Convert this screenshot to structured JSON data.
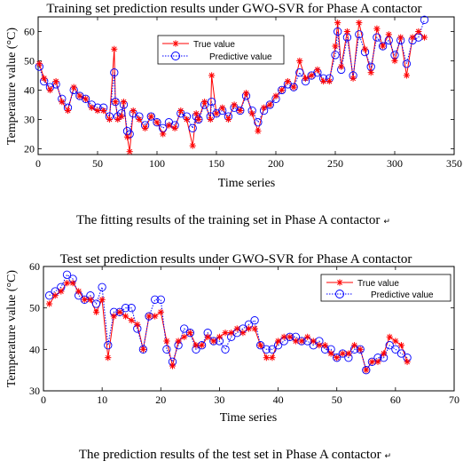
{
  "captions": {
    "top": "The fitting results of the training set in Phase A contactor",
    "bottom": "The prediction results of the test set in Phase A contactor",
    "mark": "↵"
  },
  "colors": {
    "true_value": "#ff0000",
    "predictive_value": "#0000ff"
  },
  "chart_data": [
    {
      "type": "line",
      "title": "Training set prediction results under GWO-SVR for Phase A contactor",
      "xlabel": "Time series",
      "ylabel": "Temperature value (°C)",
      "xlim": [
        0,
        350
      ],
      "ylim": [
        18,
        65
      ],
      "xticks": [
        0,
        50,
        100,
        150,
        200,
        250,
        300,
        350
      ],
      "yticks": [
        20,
        30,
        40,
        50,
        60
      ],
      "legend_position": "top-center",
      "series": [
        {
          "name": "True value",
          "x": [
            1,
            5,
            10,
            15,
            20,
            25,
            30,
            35,
            40,
            45,
            50,
            55,
            60,
            64,
            65,
            67,
            70,
            72,
            75,
            77,
            80,
            85,
            90,
            95,
            100,
            105,
            110,
            115,
            120,
            125,
            130,
            133,
            135,
            140,
            145,
            146,
            150,
            155,
            160,
            165,
            170,
            175,
            180,
            185,
            190,
            195,
            200,
            205,
            210,
            215,
            220,
            225,
            230,
            235,
            240,
            245,
            250,
            252,
            255,
            260,
            265,
            270,
            275,
            280,
            285,
            290,
            295,
            300,
            305,
            310,
            315,
            320,
            325
          ],
          "values": [
            49,
            44,
            40,
            43,
            36,
            33,
            41,
            38,
            37,
            34,
            33,
            33,
            30,
            54,
            36,
            30,
            31,
            36,
            24,
            19,
            33,
            30,
            27,
            31,
            29,
            25,
            28,
            27,
            33,
            30,
            21,
            32,
            30,
            36,
            30,
            45,
            32,
            34,
            30,
            35,
            33,
            39,
            32,
            26,
            34,
            35,
            38,
            40,
            43,
            41,
            50,
            44,
            45,
            47,
            43,
            43,
            55,
            63,
            48,
            60,
            44,
            63,
            54,
            46,
            61,
            55,
            59,
            50,
            58,
            45,
            58,
            60,
            58
          ]
        },
        {
          "name": "Predictive value",
          "x": [
            1,
            5,
            10,
            15,
            20,
            25,
            30,
            35,
            40,
            45,
            50,
            55,
            60,
            64,
            65,
            67,
            70,
            72,
            75,
            77,
            80,
            85,
            90,
            95,
            100,
            105,
            110,
            115,
            120,
            125,
            130,
            133,
            135,
            140,
            145,
            146,
            150,
            155,
            160,
            165,
            170,
            175,
            180,
            185,
            190,
            195,
            200,
            205,
            210,
            215,
            220,
            225,
            230,
            235,
            240,
            245,
            250,
            252,
            255,
            260,
            265,
            270,
            275,
            280,
            285,
            290,
            295,
            300,
            305,
            310,
            315,
            320,
            325
          ],
          "values": [
            48,
            43,
            41,
            42,
            37,
            34,
            40,
            38,
            37,
            35,
            34,
            34,
            31,
            46,
            36,
            31,
            32,
            35,
            26,
            25,
            32,
            31,
            28,
            31,
            29,
            27,
            29,
            28,
            32,
            31,
            27,
            31,
            30,
            35,
            31,
            36,
            32,
            33,
            31,
            34,
            33,
            38,
            33,
            29,
            33,
            35,
            37,
            40,
            42,
            41,
            46,
            43,
            45,
            46,
            44,
            44,
            52,
            60,
            47,
            58,
            45,
            59,
            53,
            48,
            58,
            55,
            57,
            52,
            57,
            49,
            57,
            58,
            64
          ]
        }
      ]
    },
    {
      "type": "line",
      "title": "Test set prediction results under GWO-SVR for Phase A contactor",
      "xlabel": "Time series",
      "ylabel": "Temperature value (°C)",
      "xlim": [
        0,
        70
      ],
      "ylim": [
        30,
        60
      ],
      "xticks": [
        0,
        10,
        20,
        30,
        40,
        50,
        60,
        70
      ],
      "yticks": [
        30,
        40,
        50,
        60
      ],
      "legend_position": "top-right",
      "series": [
        {
          "name": "True value",
          "x": [
            1,
            2,
            3,
            4,
            5,
            6,
            7,
            8,
            9,
            10,
            11,
            12,
            13,
            14,
            15,
            16,
            17,
            18,
            19,
            20,
            21,
            22,
            23,
            24,
            25,
            26,
            27,
            28,
            29,
            30,
            31,
            32,
            33,
            34,
            35,
            36,
            37,
            38,
            39,
            40,
            41,
            42,
            43,
            44,
            45,
            46,
            47,
            48,
            49,
            50,
            51,
            52,
            53,
            54,
            55,
            56,
            57,
            58,
            59,
            60,
            61,
            62
          ],
          "values": [
            51,
            53,
            54,
            56,
            56,
            54,
            52,
            52,
            49,
            52,
            38,
            48,
            49,
            48,
            47,
            46,
            40,
            48,
            48,
            49,
            42,
            36,
            42,
            43,
            44,
            41,
            41,
            43,
            42,
            43,
            44,
            44,
            45,
            44,
            45,
            45,
            41,
            38,
            38,
            42,
            43,
            43,
            42,
            42,
            43,
            42,
            41,
            41,
            39,
            38,
            39,
            39,
            41,
            40,
            35,
            37,
            37,
            39,
            43,
            42,
            41,
            37
          ]
        },
        {
          "name": "Predictive value",
          "x": [
            1,
            2,
            3,
            4,
            5,
            6,
            7,
            8,
            9,
            10,
            11,
            12,
            13,
            14,
            15,
            16,
            17,
            18,
            19,
            20,
            21,
            22,
            23,
            24,
            25,
            26,
            27,
            28,
            29,
            30,
            31,
            32,
            33,
            34,
            35,
            36,
            37,
            38,
            39,
            40,
            41,
            42,
            43,
            44,
            45,
            46,
            47,
            48,
            49,
            50,
            51,
            52,
            53,
            54,
            55,
            56,
            57,
            58,
            59,
            60,
            61,
            62
          ],
          "values": [
            53,
            54,
            55,
            58,
            57,
            53,
            52,
            53,
            51,
            55,
            41,
            49,
            49,
            50,
            50,
            45,
            40,
            48,
            52,
            52,
            40,
            37,
            41,
            45,
            44,
            40,
            41,
            44,
            42,
            42,
            40,
            43,
            44,
            45,
            46,
            47,
            41,
            40,
            40,
            41,
            42,
            43,
            43,
            42,
            42,
            41,
            42,
            40,
            40,
            38,
            39,
            38,
            40,
            40,
            35,
            37,
            38,
            38,
            41,
            40,
            39,
            38
          ]
        }
      ]
    }
  ]
}
